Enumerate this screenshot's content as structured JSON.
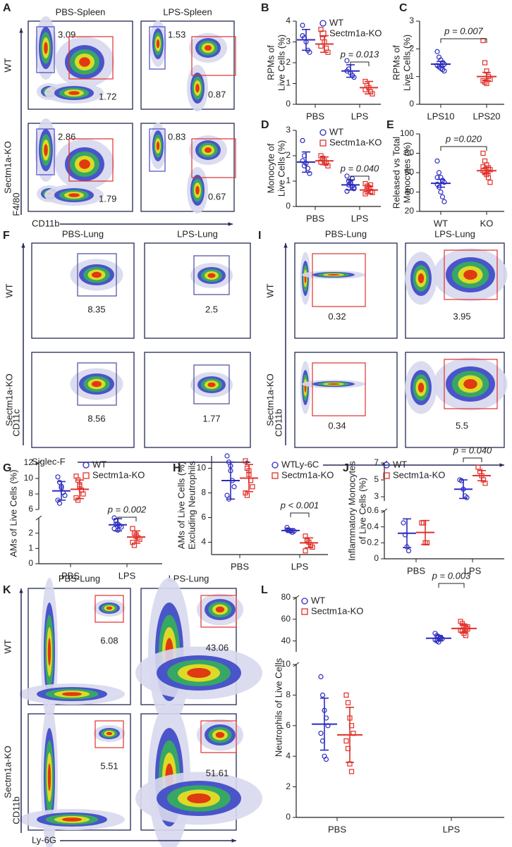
{
  "flow_panels": [
    {
      "panel": "A",
      "columns": [
        "PBS-Spleen",
        "LPS-Spleen"
      ],
      "rows": [
        "WT",
        "Sectm1a-KO"
      ],
      "y_axis": "F4/80",
      "x_axis": "CD11b",
      "gates": [
        [
          [
            "3.09",
            "1.72"
          ],
          [
            "1.53",
            "0.87"
          ]
        ],
        [
          [
            "2.86",
            "1.79"
          ],
          [
            "0.83",
            "0.67"
          ]
        ]
      ]
    },
    {
      "panel": "F",
      "columns": [
        "PBS-Lung",
        "LPS-Lung"
      ],
      "rows": [
        "WT",
        "Sectm1a-KO"
      ],
      "y_axis": "CD11c",
      "x_axis": "Siglec-F",
      "gates": [
        [
          [
            "8.35"
          ],
          [
            "2.5"
          ]
        ],
        [
          [
            "8.56"
          ],
          [
            "1.77"
          ]
        ]
      ]
    },
    {
      "panel": "I",
      "columns": [
        "PBS-Lung",
        "LPS-Lung"
      ],
      "rows": [
        "WT",
        "Sectm1a-KO"
      ],
      "y_axis": "CD11b",
      "x_axis": "Ly-6C",
      "gates": [
        [
          [
            "0.32"
          ],
          [
            "3.95"
          ]
        ],
        [
          [
            "0.34"
          ],
          [
            "5.5"
          ]
        ]
      ]
    },
    {
      "panel": "K",
      "columns": [
        "PBS-Lung",
        "LPS-Lung"
      ],
      "rows": [
        "WT",
        "Sectm1a-KO"
      ],
      "y_axis": "CD11b",
      "x_axis": "Ly-6G",
      "gates": [
        [
          [
            "6.08"
          ],
          [
            "43.06"
          ]
        ],
        [
          [
            "5.51"
          ],
          [
            "51.61"
          ]
        ]
      ]
    }
  ],
  "chart_data": [
    {
      "type": "dot",
      "panel": "B",
      "y_label": [
        "RPMs of",
        "Live Cells (%)"
      ],
      "categories": [
        "PBS",
        "LPS"
      ],
      "ylim": [
        0,
        4
      ],
      "yticks": [
        0,
        1,
        2,
        3,
        4
      ],
      "annotation": "p = 0.013",
      "series": [
        {
          "name": "WT",
          "color": "#2b2bbf",
          "marker": "circle",
          "values": [
            [
              3.8,
              3.2,
              3.0,
              2.6,
              2.5,
              3.3
            ],
            [
              2.1,
              1.7,
              1.5,
              1.4,
              1.3,
              1.6
            ]
          ],
          "mean": [
            3.1,
            1.6
          ],
          "sd": [
            0.5,
            0.3
          ]
        },
        {
          "name": "Sectm1a-KO",
          "color": "#e0302a",
          "marker": "square",
          "values": [
            [
              3.6,
              3.2,
              3.0,
              2.7,
              2.5,
              2.8
            ],
            [
              1.1,
              0.9,
              0.8,
              0.6,
              0.5,
              0.7
            ]
          ],
          "mean": [
            2.9,
            0.8
          ],
          "sd": [
            0.4,
            0.3
          ]
        }
      ]
    },
    {
      "type": "dot",
      "panel": "C",
      "y_label": [
        "RPMs of",
        "Live Cells (%)"
      ],
      "categories": [
        "LPS10",
        "LPS20"
      ],
      "ylim": [
        0,
        3
      ],
      "yticks": [
        0,
        1,
        2,
        3
      ],
      "annotation": "p = 0.007",
      "series": [
        {
          "color": "#2b2bbf",
          "marker": "circle",
          "values": [
            [
              1.9,
              1.7,
              1.6,
              1.5,
              1.45,
              1.4,
              1.35,
              1.3,
              1.25,
              1.2
            ],
            []
          ],
          "mean": [
            1.45,
            null
          ],
          "sd": [
            0.1,
            null
          ]
        },
        {
          "color": "#e0302a",
          "marker": "square",
          "values": [
            [],
            [
              2.3,
              1.5,
              1.2,
              1.0,
              0.9,
              0.85,
              0.8,
              0.75
            ]
          ],
          "mean": [
            null,
            1.0
          ],
          "sd": [
            null,
            0.15
          ]
        }
      ]
    },
    {
      "type": "dot",
      "panel": "D",
      "y_label": [
        "Monocyte of",
        "Live Cells (%)"
      ],
      "categories": [
        "PBS",
        "LPS"
      ],
      "ylim": [
        0,
        3
      ],
      "yticks": [
        0,
        1,
        2,
        3
      ],
      "annotation": "p = 0.040",
      "series": [
        {
          "name": "WT",
          "color": "#2b2bbf",
          "marker": "circle",
          "values": [
            [
              2.6,
              2.0,
              1.7,
              1.5,
              1.3,
              1.8,
              1.6
            ],
            [
              1.2,
              1.0,
              0.9,
              0.8,
              0.7,
              0.6,
              0.85,
              0.95,
              1.1,
              0.75
            ]
          ],
          "mean": [
            1.75,
            0.85
          ],
          "sd": [
            0.4,
            0.2
          ]
        },
        {
          "name": "Sectm1a-KO",
          "color": "#e0302a",
          "marker": "square",
          "values": [
            [
              2.0,
              1.9,
              1.8,
              1.7,
              1.6,
              1.75
            ],
            [
              0.9,
              0.8,
              0.7,
              0.6,
              0.55,
              0.5,
              0.65,
              0.75,
              0.85
            ]
          ],
          "mean": [
            1.8,
            0.65
          ],
          "sd": [
            0.15,
            0.15
          ]
        }
      ]
    },
    {
      "type": "dot",
      "panel": "E",
      "y_label": [
        "Released vs Total",
        "Monocytes (%)"
      ],
      "categories": [
        "WT",
        "KO"
      ],
      "ylim": [
        20,
        100
      ],
      "yticks": [
        20,
        40,
        60,
        80,
        100
      ],
      "annotation": "p =0.020",
      "series": [
        {
          "color": "#2b2bbf",
          "marker": "circle",
          "values": [
            [
              72,
              60,
              55,
              52,
              50,
              48,
              45,
              40,
              35,
              30,
              55
            ],
            []
          ],
          "mean": [
            49,
            null
          ],
          "sd": [
            4,
            null
          ]
        },
        {
          "color": "#e0302a",
          "marker": "square",
          "values": [
            [],
            [
              80,
              72,
              68,
              65,
              63,
              62,
              60,
              58,
              55,
              50,
              66
            ]
          ],
          "mean": [
            null,
            62
          ],
          "sd": [
            null,
            3
          ]
        }
      ]
    },
    {
      "type": "dot",
      "panel": "G",
      "y_label": [
        "AMs of  Live Cells (%)"
      ],
      "categories": [
        "PBS",
        "LPS"
      ],
      "ylim": [
        [
          0,
          3
        ],
        [
          6,
          12
        ]
      ],
      "yticks": [
        0,
        1,
        2,
        6,
        8,
        10,
        12
      ],
      "annotation": "p = 0.002",
      "series": [
        {
          "name": "WT",
          "color": "#2b2bbf",
          "marker": "circle",
          "values": [
            [
              10.2,
              9.5,
              8.8,
              8.2,
              7.8,
              7.2,
              6.8,
              9.0
            ],
            [
              3.0,
              2.8,
              2.6,
              2.5,
              2.4,
              2.3,
              2.6,
              2.2
            ]
          ],
          "mean": [
            8.4,
            2.55
          ],
          "sd": [
            1.2,
            0.4
          ]
        },
        {
          "name": "Sectm1a-KO",
          "color": "#e0302a",
          "marker": "square",
          "values": [
            [
              10.3,
              9.8,
              9.0,
              8.5,
              8.0,
              7.5,
              7.2,
              9.2
            ],
            [
              2.3,
              2.0,
              1.9,
              1.7,
              1.6,
              1.4,
              1.2,
              1.8
            ]
          ],
          "mean": [
            8.6,
            1.75
          ],
          "sd": [
            1.2,
            0.4
          ]
        }
      ]
    },
    {
      "type": "dot",
      "panel": "H",
      "y_label": [
        "AMs of  Live Cells (%)",
        "Excluding Neutrophils"
      ],
      "categories": [
        "PBS",
        "LPS"
      ],
      "ylim": [
        3,
        11
      ],
      "yticks": [
        4,
        6,
        8,
        10
      ],
      "annotation": "p < 0.001",
      "series": [
        {
          "name": "WT",
          "color": "#2b2bbf",
          "marker": "circle",
          "values": [
            [
              11,
              10.5,
              9.8,
              9,
              8.5,
              7.8,
              7.5,
              10.2
            ],
            [
              5.2,
              5.0,
              4.9,
              4.8,
              4.9,
              5.0
            ]
          ],
          "mean": [
            9.0,
            4.95
          ],
          "sd": [
            1.5,
            0.15
          ]
        },
        {
          "name": "Sectm1a-KO",
          "color": "#e0302a",
          "marker": "square",
          "values": [
            [
              10.6,
              10,
              9.5,
              9,
              8.5,
              8,
              7.8,
              9.8
            ],
            [
              4.5,
              4.2,
              4.0,
              3.8,
              3.6,
              3.3,
              4.1
            ]
          ],
          "mean": [
            9.2,
            3.95
          ],
          "sd": [
            1.1,
            0.4
          ]
        }
      ]
    },
    {
      "type": "dot",
      "panel": "J",
      "y_label": [
        "Inflammatory Monocytes",
        "of  Live Cells (%)"
      ],
      "categories": [
        "PBS",
        "LPS"
      ],
      "ylim": [
        [
          0,
          0.6
        ],
        [
          2.5,
          7
        ]
      ],
      "yticks": [
        0,
        0.2,
        0.4,
        0.6,
        3,
        5,
        7
      ],
      "annotation": "p = 0.040",
      "series": [
        {
          "name": "WT",
          "color": "#2b2bbf",
          "marker": "circle",
          "values": [
            [
              0.45,
              0.3,
              0.15,
              0.1
            ],
            [
              5.0,
              4.9,
              3.9,
              3.1,
              2.9
            ]
          ],
          "mean": [
            0.32,
            3.9
          ],
          "sd": [
            0.18,
            1.1
          ]
        },
        {
          "name": "Sectm1a-KO",
          "color": "#e0302a",
          "marker": "square",
          "values": [
            [
              0.45,
              0.45,
              0.2,
              0.2
            ],
            [
              6.5,
              6.0,
              5.5,
              5.0,
              4.6
            ]
          ],
          "mean": [
            0.33,
            5.5
          ],
          "sd": [
            0.15,
            0.6
          ]
        }
      ]
    },
    {
      "type": "dot",
      "panel": "L",
      "y_label": [
        "Neutrophils of Live Cells"
      ],
      "categories": [
        "PBS",
        "LPS"
      ],
      "ylim": [
        [
          0,
          10
        ],
        [
          30,
          80
        ]
      ],
      "yticks": [
        0,
        2,
        4,
        6,
        8,
        10,
        40,
        60,
        80
      ],
      "annotation": "p = 0.003",
      "series": [
        {
          "name": "WT",
          "color": "#2b2bbf",
          "marker": "circle",
          "values": [
            [
              9.2,
              8.0,
              7.0,
              6.5,
              6.0,
              5.5,
              5.0,
              4.0,
              3.8
            ],
            [
              47,
              45,
              44,
              43,
              42,
              41,
              40,
              39,
              42
            ]
          ],
          "mean": [
            6.1,
            42.5
          ],
          "sd": [
            1.7,
            2.5
          ]
        },
        {
          "name": "Sectm1a-KO",
          "color": "#e0302a",
          "marker": "square",
          "values": [
            [
              8,
              7.5,
              6.5,
              6,
              5.5,
              5,
              4.5,
              3.5,
              3
            ],
            [
              58,
              56,
              54,
              52,
              51,
              50,
              49,
              47,
              45,
              53
            ]
          ],
          "mean": [
            5.4,
            51.5
          ],
          "sd": [
            1.8,
            3.5
          ]
        }
      ]
    }
  ]
}
